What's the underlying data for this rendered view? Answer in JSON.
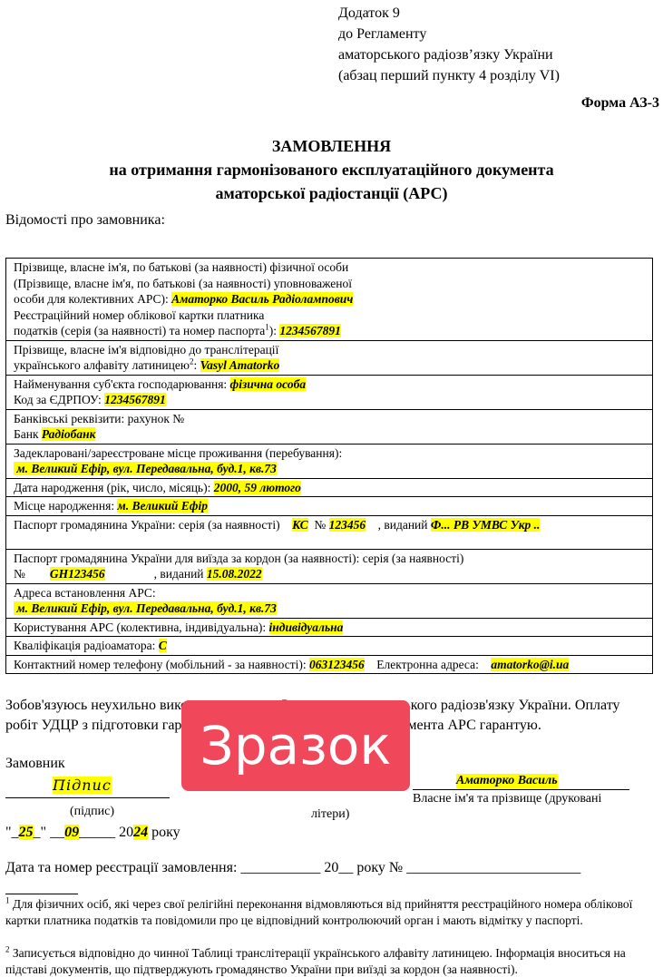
{
  "header": {
    "lines": [
      "Додаток 9",
      "до Регламенту",
      "аматорського радіозв’язку України",
      "(абзац перший пункту 4 розділу VI)"
    ],
    "form": "Форма АЗ-3"
  },
  "title": [
    "ЗАМОВЛЕННЯ",
    "на отримання гармонізованого експлуатаційного документа",
    "аматорської радіостанції (АРС)"
  ],
  "intro": "Відомості про замовника:",
  "table": {
    "rows": [
      [
        [
          {
            "text": "Прізвище, власне ім'я, по батькові (за наявності) фізичної особи"
          }
        ],
        [
          {
            "text": "(Прізвище, власне ім'я, по батькові (за наявності) уповноваженої"
          }
        ],
        [
          {
            "text": "особи для колективних АРС): "
          },
          {
            "value": "Аматорко Василь Радіолампович"
          }
        ],
        [
          {
            "text": "Реєстраційний номер облікової картки платника"
          }
        ],
        [
          {
            "text": "податків (серія (за наявності) та номер паспорта"
          },
          {
            "sup": "1"
          },
          {
            "text": "): "
          },
          {
            "value": "1234567891"
          }
        ]
      ],
      [
        [
          {
            "text": "Прізвище, власне ім'я відповідно до транслітерації"
          }
        ],
        [
          {
            "text": "українського алфавіту латиницею"
          },
          {
            "sup": "2"
          },
          {
            "text": ": "
          },
          {
            "value": "Vasyl Amatorko"
          }
        ]
      ],
      [
        [
          {
            "text": "Найменування суб'єкта господарювання: "
          },
          {
            "value": "фізична особа"
          }
        ],
        [
          {
            "text": "Код за ЄДРПОУ: "
          },
          {
            "value": "1234567891"
          }
        ]
      ],
      [
        [
          {
            "text": "Банківські реквізити: рахунок №"
          }
        ],
        [
          {
            "text": "Банк "
          },
          {
            "value": "Радіобанк"
          }
        ]
      ],
      [
        [
          {
            "text": "Задекларовані/зареєстроване місце проживання (перебування):"
          }
        ],
        [
          {
            "value": " м. Великий Ефір, вул. Передавальна, буд.1, кв.73"
          }
        ]
      ],
      [
        [
          {
            "text": "Дата народження (рік, число, місяць): "
          },
          {
            "value": "2000, 59 лютого"
          }
        ]
      ],
      [
        [
          {
            "text": "Місце народження: "
          },
          {
            "value": "м. Великий Ефір"
          }
        ]
      ],
      [
        [
          {
            "text": "Паспорт громадянина України: серія (за наявності)    "
          },
          {
            "value": "КС"
          },
          {
            "text": "  № "
          },
          {
            "value": "123456"
          },
          {
            "text": "    , виданий "
          },
          {
            "value": "Ф... РВ УМВС Укр .."
          }
        ]
      ],
      [
        [
          {
            "text": "Паспорт громадянина України для виїзда за кордон (за наявності): серія (за наявності)"
          }
        ],
        [
          {
            "text": "№        "
          },
          {
            "value": "GH123456"
          },
          {
            "text": "                , виданий "
          },
          {
            "value": "15.08.2022"
          }
        ]
      ],
      [
        [
          {
            "text": "Адреса встановлення АРС:"
          }
        ],
        [
          {
            "value": " м. Великий Ефір, вул. Передавальна, буд.1, кв.73"
          }
        ]
      ],
      [
        [
          {
            "text": "Користування АРС (колективна, індивідуальна): "
          },
          {
            "value": "індивідуальна"
          }
        ]
      ],
      [
        [
          {
            "text": "Кваліфікація радіоаматора: "
          },
          {
            "value": "С"
          }
        ]
      ],
      [
        [
          {
            "text": "Контактний номер телефону (мобільний - за наявності): "
          },
          {
            "value": "063123456"
          },
          {
            "text": "    Електронна адреса:    "
          },
          {
            "value": "amatorko@i.ua"
          }
        ]
      ]
    ]
  },
  "obligation": "Зобов'язуюсь неухильно виконувати вимоги Регламенту аматорського радіозв'язку України. Оплату робіт УДЦР з підготовки гармонізованого експлуатаційного документа АРС гарантую.",
  "stamp": "Зразок",
  "signature": {
    "label": "Замовник",
    "sign": "Підпис",
    "sign_caption": "(підпис)",
    "name": "Аматорко Василь",
    "name_caption": "Власне ім'я та прізвище (друковані",
    "name_caption_end": "літери)"
  },
  "date": [
    {
      "text": "\"_"
    },
    {
      "value": "25"
    },
    {
      "text": "_\" __"
    },
    {
      "value": "09"
    },
    {
      "text": "_____ 20"
    },
    {
      "value": "24"
    },
    {
      "text": " року"
    }
  ],
  "registration": "Дата та номер реєстрації замовлення: ___________ 20__ року № ________________________",
  "footnotes": [
    {
      "mark": "1",
      "text": " Для фізичних осіб, які через свої релігійні переконання відмовляються від прийняття реєстраційного номера облікової картки платника податків та повідомили про це відповідний контролюючий орган і мають відмітку у паспорті."
    },
    {
      "mark": "2",
      "text": " Записується відповідно до чинної Таблиці транслітерації українського алфавіту латиницею. Інформація вноситься на підставі документів, що підтверджують громадянство України при виїзді за кордон (за наявності)."
    }
  ]
}
